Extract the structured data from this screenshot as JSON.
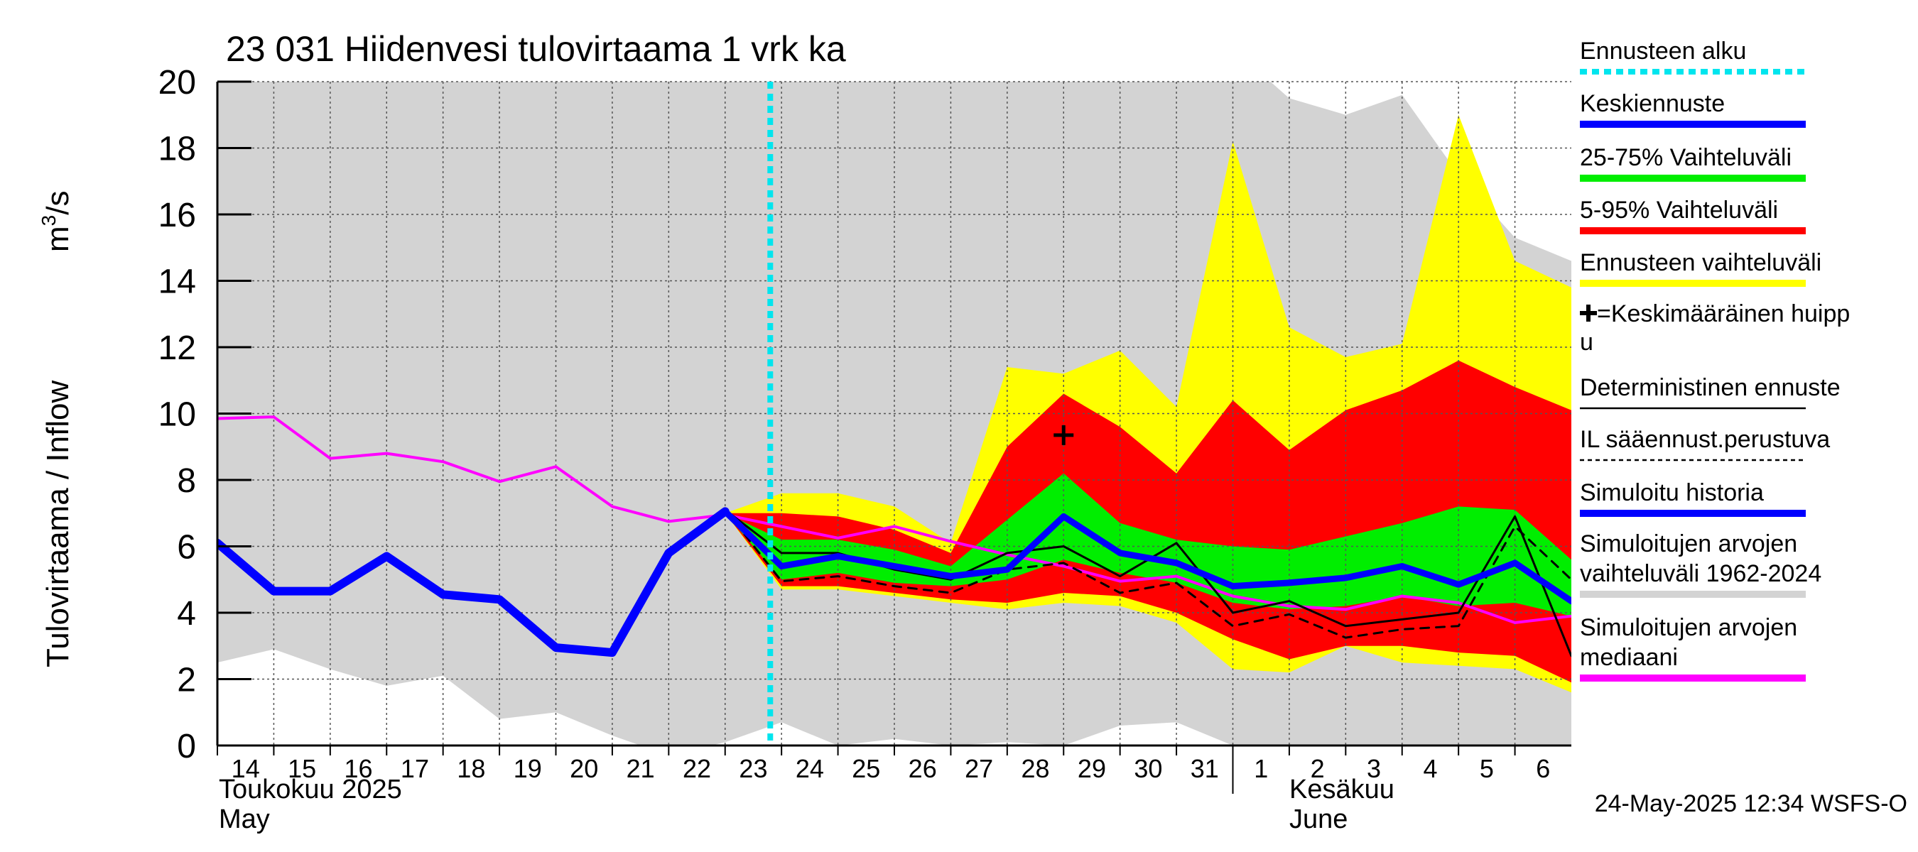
{
  "chart_data": {
    "type": "area",
    "title": "23 031 Hiidenvesi tulovirtaama 1 vrk ka",
    "ylabel": "Tulovirtaama / Inflow",
    "yunit_base": "m",
    "yunit_sup": "3",
    "yunit_tail": "/s",
    "ylim": [
      0,
      20
    ],
    "yticks": [
      0,
      2,
      4,
      6,
      8,
      10,
      12,
      14,
      16,
      18,
      20
    ],
    "grid": true,
    "x": [
      14,
      15,
      16,
      17,
      18,
      19,
      20,
      21,
      22,
      23,
      24,
      25,
      26,
      27,
      28,
      29,
      30,
      31,
      32,
      33,
      34,
      35,
      36,
      37,
      38
    ],
    "xtick_labels": [
      "14",
      "15",
      "16",
      "17",
      "18",
      "19",
      "20",
      "21",
      "22",
      "23",
      "24",
      "25",
      "26",
      "27",
      "28",
      "29",
      "30",
      "31",
      "1",
      "2",
      "3",
      "4",
      "5",
      "6"
    ],
    "month_labels": [
      {
        "fi": "Toukokuu  2025",
        "en": "May"
      },
      {
        "fi": "Kesäkuu",
        "en": "June"
      }
    ],
    "forecast_start": 23.8,
    "timestamp": "24-May-2025 12:34 WSFS-O",
    "series": [
      {
        "name": "Simuloitujen arvojen vaihteluväli 1962-2024",
        "color": "#d3d3d3",
        "kind": "band",
        "x": [
          14,
          15,
          16,
          17,
          18,
          19,
          20,
          21,
          22,
          23,
          24,
          25,
          26,
          27,
          28,
          29,
          30,
          31,
          32,
          33,
          34,
          35,
          36,
          37,
          38
        ],
        "low": [
          2.5,
          2.9,
          2.3,
          1.8,
          2.1,
          0.8,
          1.0,
          0.3,
          -0.3,
          0.1,
          0.7,
          0.0,
          0.2,
          0.0,
          0.1,
          0.0,
          0.6,
          0.7,
          0.0,
          -0.1,
          0.0,
          0.0,
          -0.2,
          -0.1,
          0.0
        ],
        "high": [
          21,
          21,
          21,
          21,
          21,
          21,
          21,
          21,
          21,
          21,
          21,
          21,
          21,
          21,
          21,
          21,
          20.8,
          21,
          21,
          19.5,
          19.0,
          19.6,
          17.2,
          15.3,
          14.6
        ]
      },
      {
        "name": "Ennusteen vaihteluväli",
        "color": "#ffff00",
        "kind": "band",
        "x": [
          23,
          24,
          25,
          26,
          27,
          28,
          29,
          30,
          31,
          32,
          33,
          34,
          35,
          36,
          37,
          38
        ],
        "low": [
          7.0,
          4.7,
          4.7,
          4.5,
          4.3,
          4.1,
          4.3,
          4.2,
          3.7,
          2.3,
          2.2,
          3.0,
          2.5,
          2.4,
          2.3,
          1.6
        ],
        "high": [
          7.0,
          7.6,
          7.6,
          7.2,
          6.1,
          11.4,
          11.2,
          11.9,
          10.2,
          18.2,
          12.6,
          11.7,
          12.1,
          19.0,
          14.6,
          13.8
        ]
      },
      {
        "name": "5-95% Vaihteluväli",
        "color": "#ff0000",
        "kind": "band",
        "x": [
          23,
          24,
          25,
          26,
          27,
          28,
          29,
          30,
          31,
          32,
          33,
          34,
          35,
          36,
          37,
          38
        ],
        "low": [
          7.0,
          4.8,
          4.8,
          4.6,
          4.4,
          4.3,
          4.6,
          4.5,
          4.0,
          3.2,
          2.6,
          3.0,
          3.0,
          2.8,
          2.7,
          1.9
        ],
        "high": [
          7.0,
          7.0,
          6.9,
          6.5,
          5.8,
          9.0,
          10.6,
          9.6,
          8.2,
          10.4,
          8.9,
          10.1,
          10.7,
          11.6,
          10.8,
          10.1
        ]
      },
      {
        "name": "25-75% Vaihteluväli",
        "color": "#00ee00",
        "kind": "band",
        "x": [
          23,
          24,
          25,
          26,
          27,
          28,
          29,
          30,
          31,
          32,
          33,
          34,
          35,
          36,
          37,
          38
        ],
        "low": [
          7.0,
          5.0,
          5.2,
          4.9,
          4.8,
          5.0,
          5.6,
          5.2,
          4.9,
          4.3,
          4.1,
          4.2,
          4.5,
          4.2,
          4.3,
          3.9
        ],
        "high": [
          7.0,
          6.2,
          6.2,
          5.9,
          5.4,
          6.8,
          8.2,
          6.7,
          6.2,
          6.0,
          5.9,
          6.3,
          6.7,
          7.2,
          7.1,
          5.6
        ]
      },
      {
        "name": "Simuloitujen arvojen mediaani",
        "color": "#ff00ff",
        "kind": "line",
        "width": 4,
        "x": [
          14,
          15,
          16,
          17,
          18,
          19,
          20,
          21,
          22,
          23,
          24,
          25,
          26,
          27,
          28,
          29,
          30,
          31,
          32,
          33,
          34,
          35,
          36,
          37,
          38
        ],
        "values": [
          9.85,
          9.9,
          8.65,
          8.8,
          8.55,
          7.95,
          8.4,
          7.2,
          6.75,
          6.95,
          6.6,
          6.25,
          6.6,
          6.15,
          5.75,
          5.4,
          4.95,
          5.1,
          4.5,
          4.2,
          4.1,
          4.5,
          4.3,
          3.7,
          3.9
        ]
      },
      {
        "name": "IL sääennust.perustuva",
        "color": "#000000",
        "kind": "line",
        "width": 3,
        "dash": "12,10",
        "x": [
          23,
          24,
          25,
          26,
          27,
          28,
          29,
          30,
          31,
          32,
          33,
          34,
          35,
          36,
          37,
          38
        ],
        "values": [
          7.1,
          4.95,
          5.1,
          4.8,
          4.6,
          5.3,
          5.5,
          4.6,
          4.9,
          3.6,
          3.95,
          3.25,
          3.5,
          3.6,
          6.6,
          5.0
        ]
      },
      {
        "name": "Deterministinen ennuste",
        "color": "#000000",
        "kind": "line",
        "width": 3,
        "x": [
          23,
          24,
          25,
          26,
          27,
          28,
          29,
          30,
          31,
          32,
          33,
          34,
          35,
          36,
          37,
          38
        ],
        "values": [
          7.1,
          5.8,
          5.8,
          5.3,
          5.0,
          5.8,
          6.0,
          5.1,
          6.1,
          4.0,
          4.35,
          3.6,
          3.8,
          4.0,
          6.9,
          2.7
        ]
      },
      {
        "name": "Keskiennuste",
        "color": "#0000ff",
        "kind": "line",
        "width": 9,
        "x": [
          23,
          24,
          25,
          26,
          27,
          28,
          29,
          30,
          31,
          32,
          33,
          34,
          35,
          36,
          37,
          38
        ],
        "values": [
          7.05,
          5.4,
          5.7,
          5.4,
          5.1,
          5.3,
          6.9,
          5.8,
          5.5,
          4.8,
          4.9,
          5.05,
          5.4,
          4.85,
          5.5,
          4.35
        ]
      },
      {
        "name": "Simuloitu historia",
        "color": "#0000ff",
        "kind": "line",
        "width": 12,
        "x": [
          14,
          15,
          16,
          17,
          18,
          19,
          20,
          21,
          22,
          23
        ],
        "values": [
          6.1,
          4.65,
          4.65,
          5.7,
          4.55,
          4.4,
          2.95,
          2.8,
          5.8,
          7.05
        ]
      }
    ],
    "peak_marker": {
      "x": 29,
      "y": 9.35,
      "label": "+"
    },
    "legend_position": "right",
    "legend": [
      {
        "label": "Ennusteen alku",
        "color": "#00e5ee",
        "style": "dotted"
      },
      {
        "label": "Keskiennuste",
        "color": "#0000ff",
        "style": "solid"
      },
      {
        "label": "25-75% Vaihteluväli",
        "color": "#00ee00",
        "style": "solid"
      },
      {
        "label": "5-95% Vaihteluväli",
        "color": "#ff0000",
        "style": "solid"
      },
      {
        "label": "Ennusteen vaihteluväli",
        "color": "#ffff00",
        "style": "solid"
      },
      {
        "label": "=Keskimääräinen huipp",
        "label2": "u",
        "style": "marker"
      },
      {
        "label": "Deterministinen ennuste",
        "color": "#000000",
        "style": "thin"
      },
      {
        "label": "IL sääennust.perustuva",
        "color": "#000000",
        "style": "dashed"
      },
      {
        "label": "Simuloitu historia",
        "color": "#0000ff",
        "style": "solid"
      },
      {
        "label": "Simuloitujen arvojen",
        "label2": "vaihteluväli 1962-2024",
        "color": "#d3d3d3",
        "style": "solid"
      },
      {
        "label": "Simuloitujen arvojen",
        "label2": "mediaani",
        "color": "#ff00ff",
        "style": "solid"
      }
    ]
  }
}
